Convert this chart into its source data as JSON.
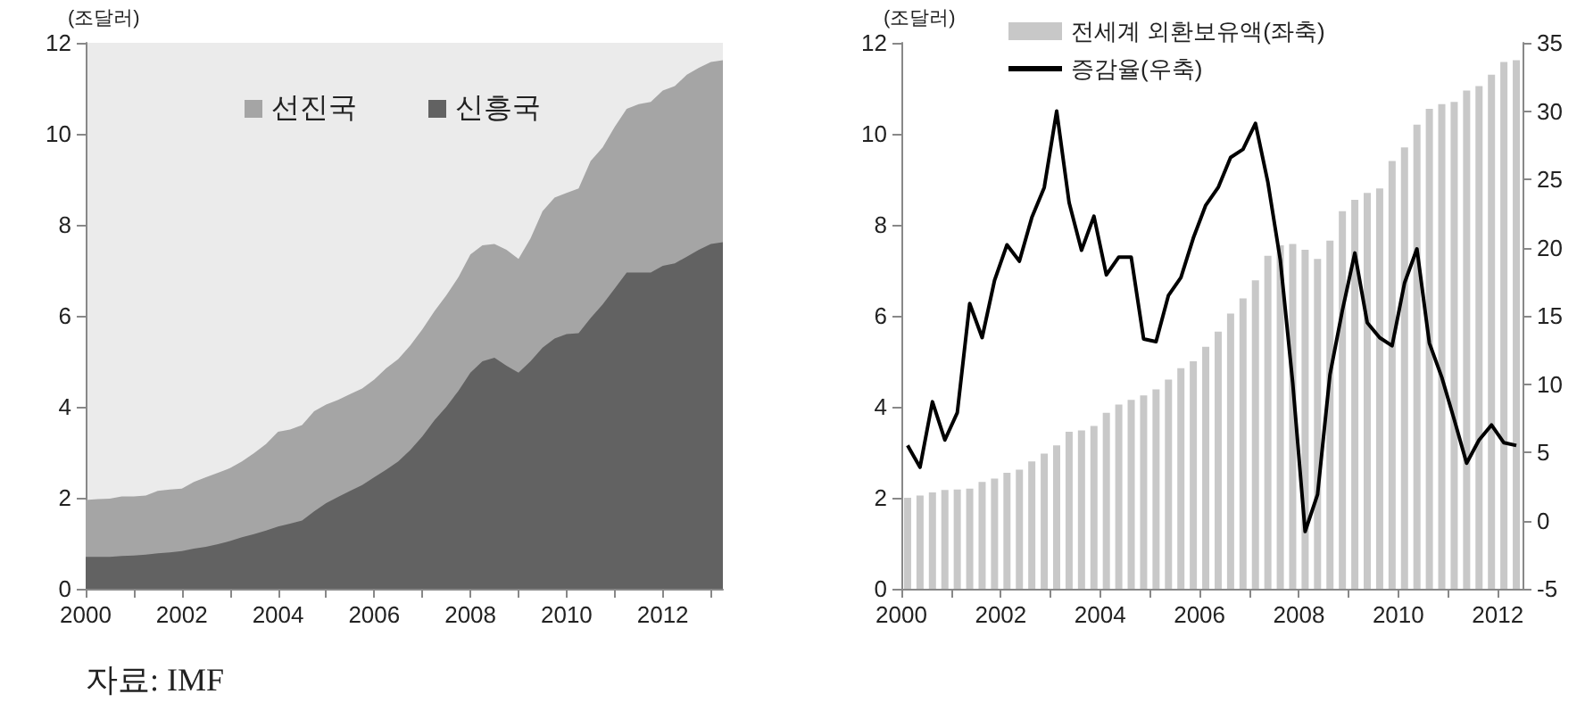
{
  "chart_data": [
    {
      "type": "area",
      "ylabel": "(조달러)",
      "stacked": true,
      "legend": "top",
      "annotations": [
        "자료: IMF"
      ],
      "x": [
        2000,
        2000.25,
        2000.5,
        2000.75,
        2001,
        2001.25,
        2001.5,
        2001.75,
        2002,
        2002.25,
        2002.5,
        2002.75,
        2003,
        2003.25,
        2003.5,
        2003.75,
        2004,
        2004.25,
        2004.5,
        2004.75,
        2005,
        2005.25,
        2005.5,
        2005.75,
        2006,
        2006.25,
        2006.5,
        2006.75,
        2007,
        2007.25,
        2007.5,
        2007.75,
        2008,
        2008.25,
        2008.5,
        2008.75,
        2009,
        2009.25,
        2009.5,
        2009.75,
        2010,
        2010.25,
        2010.5,
        2010.75,
        2011,
        2011.25,
        2011.5,
        2011.75,
        2012,
        2012.25,
        2012.5,
        2012.75,
        2013,
        2013.25
      ],
      "xlim": [
        2000,
        2013.25
      ],
      "xticks": [
        2000,
        {
          "value": 2001,
          "label": null
        },
        2002,
        {
          "value": 2003,
          "label": null
        },
        2004,
        {
          "value": 2005,
          "label": null
        },
        2006,
        {
          "value": 2007,
          "label": null
        },
        2008,
        {
          "value": 2009,
          "label": null
        },
        2010,
        {
          "value": 2011,
          "label": null
        },
        2012,
        {
          "value": 2013,
          "label": null
        }
      ],
      "ylim": [
        0,
        12
      ],
      "yticks": [
        0,
        2,
        4,
        6,
        8,
        10,
        12
      ],
      "series": [
        {
          "name": "신흥국",
          "color": "#626262",
          "values": [
            0.7,
            0.7,
            0.7,
            0.72,
            0.73,
            0.75,
            0.78,
            0.8,
            0.83,
            0.88,
            0.92,
            0.98,
            1.05,
            1.13,
            1.2,
            1.28,
            1.37,
            1.43,
            1.5,
            1.7,
            1.88,
            2.02,
            2.15,
            2.28,
            2.45,
            2.62,
            2.8,
            3.05,
            3.35,
            3.7,
            4.0,
            4.35,
            4.75,
            5.0,
            5.08,
            4.9,
            4.75,
            5.0,
            5.3,
            5.5,
            5.6,
            5.62,
            5.95,
            6.25,
            6.6,
            6.95,
            6.95,
            6.95,
            7.1,
            7.15,
            7.3,
            7.45,
            7.58,
            7.62
          ]
        },
        {
          "name": "선진국",
          "color": "#a5a5a5",
          "values": [
            1.25,
            1.27,
            1.28,
            1.31,
            1.3,
            1.3,
            1.37,
            1.38,
            1.37,
            1.47,
            1.53,
            1.57,
            1.6,
            1.67,
            1.78,
            1.9,
            2.08,
            2.07,
            2.1,
            2.2,
            2.17,
            2.13,
            2.13,
            2.12,
            2.15,
            2.23,
            2.25,
            2.3,
            2.35,
            2.4,
            2.45,
            2.5,
            2.6,
            2.55,
            2.5,
            2.55,
            2.5,
            2.7,
            3.0,
            3.1,
            3.1,
            3.18,
            3.45,
            3.45,
            3.55,
            3.6,
            3.7,
            3.75,
            3.85,
            3.9,
            4.0,
            4.0,
            4.0,
            4.0
          ]
        }
      ]
    },
    {
      "type": "bar",
      "ylabel": "(조달러)",
      "legend": "top",
      "x": [
        2000.125,
        2000.375,
        2000.625,
        2000.875,
        2001.125,
        2001.375,
        2001.625,
        2001.875,
        2002.125,
        2002.375,
        2002.625,
        2002.875,
        2003.125,
        2003.375,
        2003.625,
        2003.875,
        2004.125,
        2004.375,
        2004.625,
        2004.875,
        2005.125,
        2005.375,
        2005.625,
        2005.875,
        2006.125,
        2006.375,
        2006.625,
        2006.875,
        2007.125,
        2007.375,
        2007.625,
        2007.875,
        2008.125,
        2008.375,
        2008.625,
        2008.875,
        2009.125,
        2009.375,
        2009.625,
        2009.875,
        2010.125,
        2010.375,
        2010.625,
        2010.875,
        2011.125,
        2011.375,
        2011.625,
        2011.875,
        2012.125,
        2012.375
      ],
      "xlim": [
        2000,
        2012.5
      ],
      "xticks": [
        2000,
        {
          "value": 2001,
          "label": null
        },
        2002,
        {
          "value": 2003,
          "label": null
        },
        2004,
        {
          "value": 2005,
          "label": null
        },
        2006,
        {
          "value": 2007,
          "label": null
        },
        2008,
        {
          "value": 2009,
          "label": null
        },
        2010,
        {
          "value": 2011,
          "label": null
        },
        2012
      ],
      "ylim": [
        0,
        12
      ],
      "yticks": [
        0,
        2,
        4,
        6,
        8,
        10,
        12
      ],
      "y2lim": [
        -5,
        35
      ],
      "y2ticks": [
        -5,
        0,
        5,
        10,
        15,
        20,
        25,
        30,
        35
      ],
      "series": [
        {
          "name": "전세계 외환보유액(좌축)",
          "type": "bar",
          "color": "#c8c8c8",
          "values": [
            2.0,
            2.05,
            2.12,
            2.17,
            2.18,
            2.2,
            2.35,
            2.42,
            2.55,
            2.62,
            2.8,
            2.97,
            3.15,
            3.45,
            3.48,
            3.58,
            3.87,
            4.05,
            4.15,
            4.25,
            4.38,
            4.6,
            4.85,
            5.0,
            5.32,
            5.65,
            6.05,
            6.38,
            6.78,
            7.32,
            7.55,
            7.58,
            7.45,
            7.25,
            7.65,
            8.3,
            8.55,
            8.7,
            8.8,
            9.4,
            9.7,
            10.2,
            10.55,
            10.65,
            10.7,
            10.95,
            11.05,
            11.3,
            11.58,
            11.62
          ]
        },
        {
          "name": "증감율(우축)",
          "type": "line",
          "axis": "y2",
          "color": "#000000",
          "values": [
            5.5,
            3.9,
            8.7,
            5.9,
            7.9,
            15.9,
            13.4,
            17.6,
            20.2,
            19.0,
            22.2,
            24.4,
            30.0,
            23.3,
            19.8,
            22.3,
            18.0,
            19.3,
            19.3,
            13.3,
            13.1,
            16.5,
            17.8,
            20.7,
            23.1,
            24.4,
            26.6,
            27.2,
            29.1,
            24.8,
            19.1,
            10.1,
            -0.8,
            1.9,
            10.7,
            15.4,
            19.6,
            14.5,
            13.4,
            12.8,
            17.4,
            19.9,
            13.0,
            10.5,
            7.4,
            4.2,
            5.9,
            7.0,
            5.7,
            5.5
          ]
        }
      ]
    }
  ]
}
